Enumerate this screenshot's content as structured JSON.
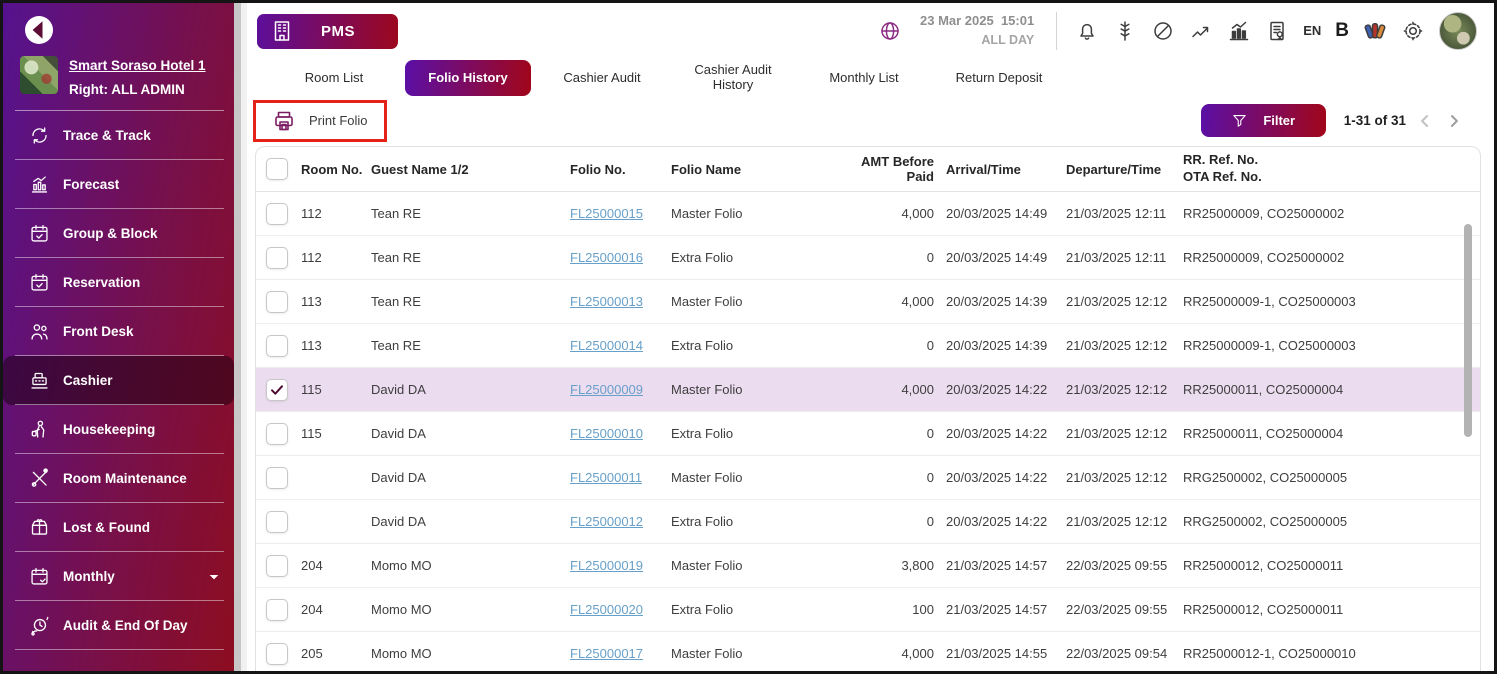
{
  "colors": {
    "brand_gradient_start": "#5a0fa6",
    "brand_gradient_end": "#a10619",
    "sidebar_gradient_start": "#55128f",
    "sidebar_gradient_end": "#8d0d20",
    "selected_row_bg": "#ecdcf0",
    "link_color": "#67a0c9",
    "annotation_red": "#e32219"
  },
  "sidebar": {
    "hotel_name": "Smart Soraso Hotel 1",
    "hotel_right": "Right: ALL ADMIN",
    "items": [
      {
        "label": "Trace & Track",
        "icon": "trace-track",
        "active": false,
        "expandable": false
      },
      {
        "label": "Forecast",
        "icon": "forecast",
        "active": false,
        "expandable": false
      },
      {
        "label": "Group & Block",
        "icon": "group-block",
        "active": false,
        "expandable": false
      },
      {
        "label": "Reservation",
        "icon": "reservation",
        "active": false,
        "expandable": false
      },
      {
        "label": "Front Desk",
        "icon": "front-desk",
        "active": false,
        "expandable": false
      },
      {
        "label": "Cashier",
        "icon": "cashier",
        "active": true,
        "expandable": false
      },
      {
        "label": "Housekeeping",
        "icon": "housekeeping",
        "active": false,
        "expandable": false
      },
      {
        "label": "Room Maintenance",
        "icon": "room-maintenance",
        "active": false,
        "expandable": false
      },
      {
        "label": "Lost & Found",
        "icon": "lost-found",
        "active": false,
        "expandable": false
      },
      {
        "label": "Monthly",
        "icon": "monthly",
        "active": false,
        "expandable": true
      },
      {
        "label": "Audit & End Of Day",
        "icon": "audit",
        "active": false,
        "expandable": false
      }
    ]
  },
  "header": {
    "app_label": "PMS",
    "datetime": "23 Mar 2025  15:01",
    "day_scope": "ALL DAY",
    "language": "EN",
    "bold_button": "B",
    "icon_names": [
      "globe-icon",
      "bell-icon",
      "spine-icon",
      "block-icon",
      "line-chart-icon",
      "bar-chart-icon",
      "report-icon",
      "palette-icon",
      "gear-icon",
      "avatar"
    ]
  },
  "tabs": [
    {
      "label": "Room List",
      "active": false
    },
    {
      "label": "Folio History",
      "active": true
    },
    {
      "label": "Cashier Audit",
      "active": false
    },
    {
      "label": "Cashier Audit History",
      "active": false
    },
    {
      "label": "Monthly List",
      "active": false
    },
    {
      "label": "Return Deposit",
      "active": false
    }
  ],
  "toolbar": {
    "print_label": "Print Folio",
    "filter_label": "Filter",
    "range_label": "1-31 of 31"
  },
  "table": {
    "columns": [
      "Room No.",
      "Guest Name 1/2",
      "Folio No.",
      "Folio Name",
      "AMT Before Paid",
      "Arrival/Time",
      "Departure/Time"
    ],
    "ref_header_line1": "RR. Ref. No.",
    "ref_header_line2": "OTA Ref. No.",
    "rows": [
      {
        "checked": false,
        "selected": false,
        "room": "112",
        "guest": "Tean RE",
        "folio_no": "FL25000015",
        "folio_name": "Master Folio",
        "amt": "4,000",
        "arrival": "20/03/2025 14:49",
        "departure": "21/03/2025 12:11",
        "ref": "RR25000009, CO25000002"
      },
      {
        "checked": false,
        "selected": false,
        "room": "112",
        "guest": "Tean RE",
        "folio_no": "FL25000016",
        "folio_name": "Extra Folio",
        "amt": "0",
        "arrival": "20/03/2025 14:49",
        "departure": "21/03/2025 12:11",
        "ref": "RR25000009, CO25000002"
      },
      {
        "checked": false,
        "selected": false,
        "room": "113",
        "guest": "Tean RE",
        "folio_no": "FL25000013",
        "folio_name": "Master Folio",
        "amt": "4,000",
        "arrival": "20/03/2025 14:39",
        "departure": "21/03/2025 12:12",
        "ref": "RR25000009-1, CO25000003"
      },
      {
        "checked": false,
        "selected": false,
        "room": "113",
        "guest": "Tean RE",
        "folio_no": "FL25000014",
        "folio_name": "Extra Folio",
        "amt": "0",
        "arrival": "20/03/2025 14:39",
        "departure": "21/03/2025 12:12",
        "ref": "RR25000009-1, CO25000003"
      },
      {
        "checked": true,
        "selected": true,
        "room": "115",
        "guest": "David DA",
        "folio_no": "FL25000009",
        "folio_name": "Master Folio",
        "amt": "4,000",
        "arrival": "20/03/2025 14:22",
        "departure": "21/03/2025 12:12",
        "ref": "RR25000011, CO25000004"
      },
      {
        "checked": false,
        "selected": false,
        "room": "115",
        "guest": "David DA",
        "folio_no": "FL25000010",
        "folio_name": "Extra Folio",
        "amt": "0",
        "arrival": "20/03/2025 14:22",
        "departure": "21/03/2025 12:12",
        "ref": "RR25000011, CO25000004"
      },
      {
        "checked": false,
        "selected": false,
        "room": "",
        "guest": "David DA",
        "folio_no": "FL25000011",
        "folio_name": "Master Folio",
        "amt": "0",
        "arrival": "20/03/2025 14:22",
        "departure": "21/03/2025 12:12",
        "ref": "RRG2500002, CO25000005"
      },
      {
        "checked": false,
        "selected": false,
        "room": "",
        "guest": "David DA",
        "folio_no": "FL25000012",
        "folio_name": "Extra Folio",
        "amt": "0",
        "arrival": "20/03/2025 14:22",
        "departure": "21/03/2025 12:12",
        "ref": "RRG2500002, CO25000005"
      },
      {
        "checked": false,
        "selected": false,
        "room": "204",
        "guest": "Momo MO",
        "folio_no": "FL25000019",
        "folio_name": "Master Folio",
        "amt": "3,800",
        "arrival": "21/03/2025 14:57",
        "departure": "22/03/2025 09:55",
        "ref": "RR25000012, CO25000011"
      },
      {
        "checked": false,
        "selected": false,
        "room": "204",
        "guest": "Momo MO",
        "folio_no": "FL25000020",
        "folio_name": "Extra Folio",
        "amt": "100",
        "arrival": "21/03/2025 14:57",
        "departure": "22/03/2025 09:55",
        "ref": "RR25000012, CO25000011"
      },
      {
        "checked": false,
        "selected": false,
        "room": "205",
        "guest": "Momo MO",
        "folio_no": "FL25000017",
        "folio_name": "Master Folio",
        "amt": "4,000",
        "arrival": "21/03/2025 14:55",
        "departure": "22/03/2025 09:54",
        "ref": "RR25000012-1, CO25000010"
      }
    ]
  }
}
